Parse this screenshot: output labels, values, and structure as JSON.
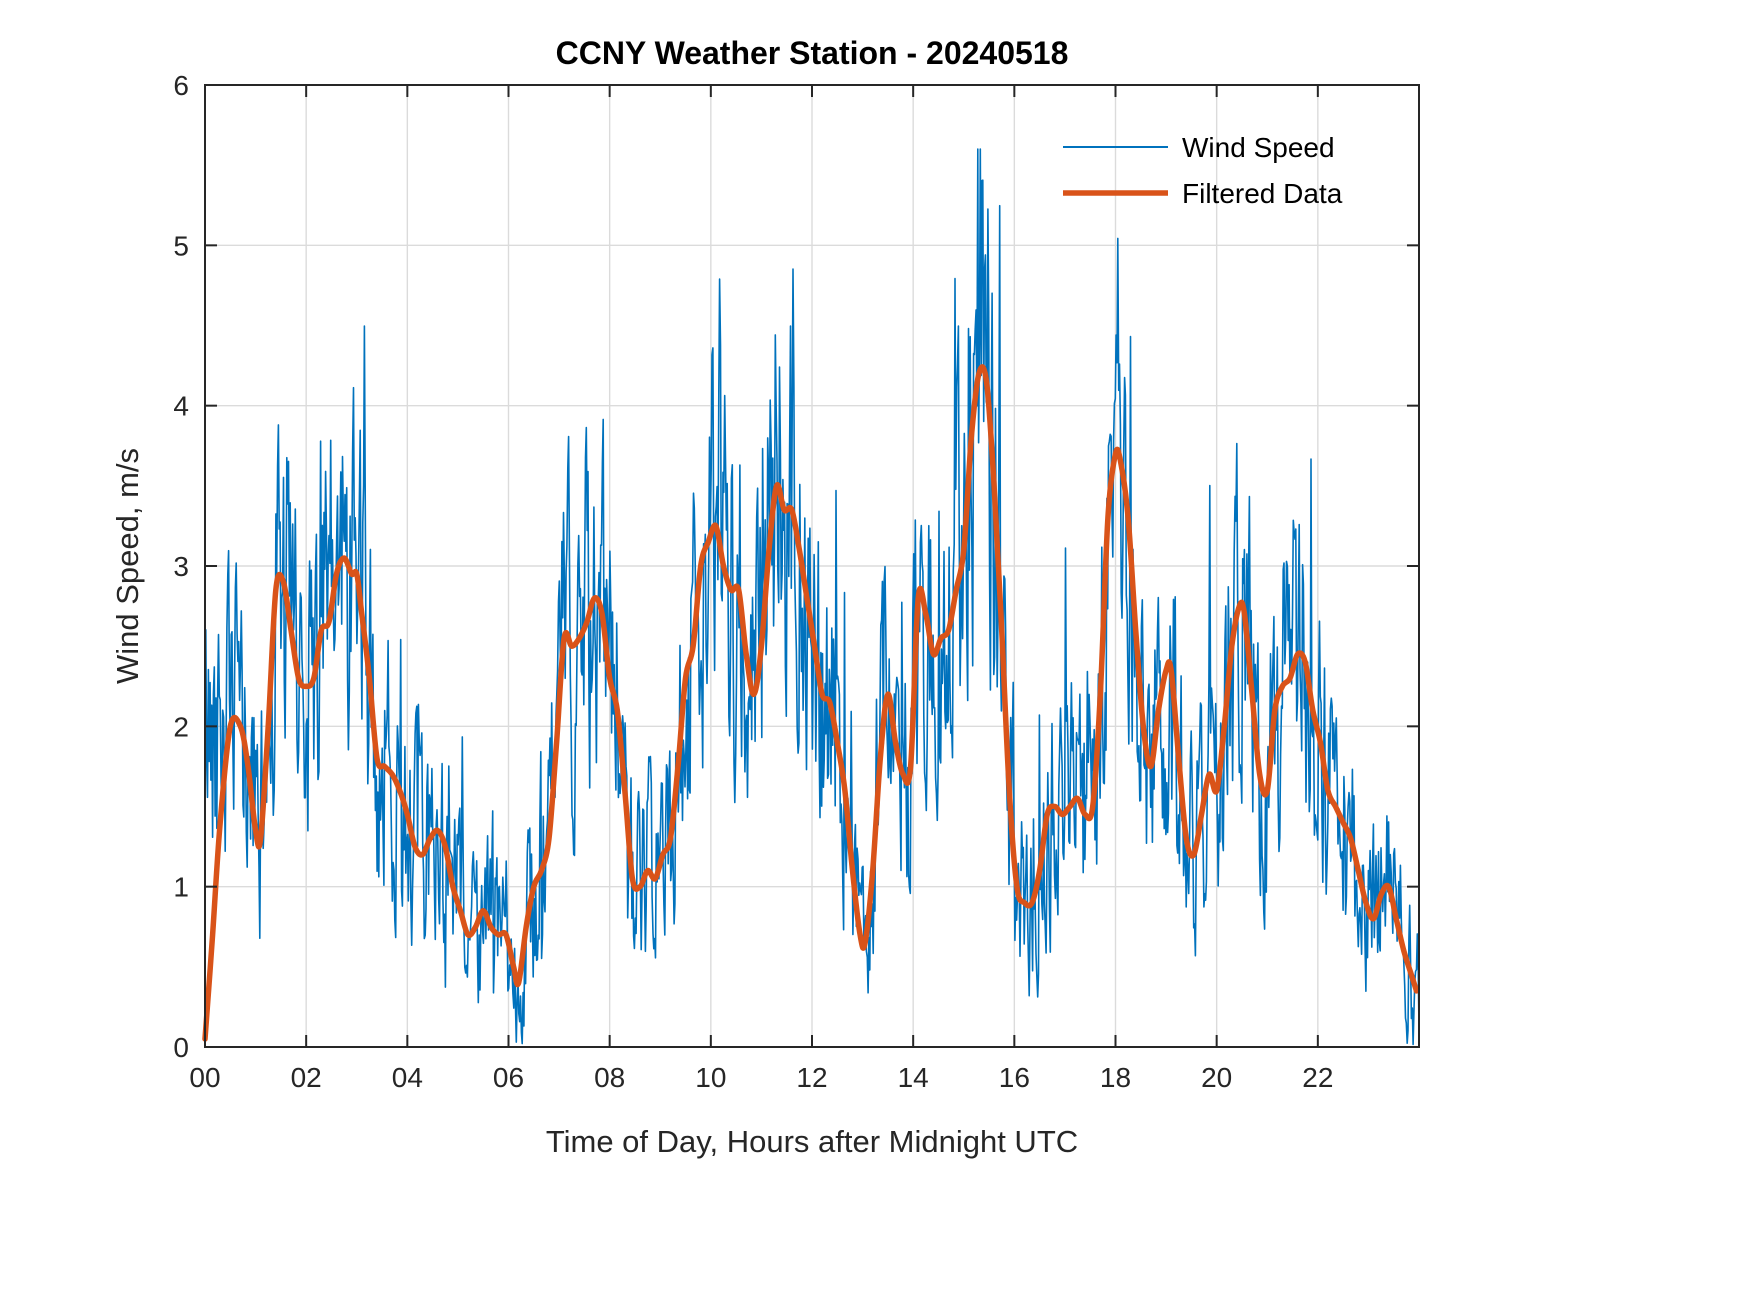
{
  "figure": {
    "title": "CCNY Weather Station - 20240518",
    "xlabel": "Time of Day, Hours after Midnight UTC",
    "ylabel": "Wind Speed, m/s"
  },
  "legend": {
    "position": "top-right",
    "entries": [
      {
        "label": "Wind Speed",
        "color": "#0072BD",
        "sample_width": 2
      },
      {
        "label": "Filtered Data",
        "color": "#D95319",
        "sample_width": 5.5
      }
    ]
  },
  "colors": {
    "axis_box": "#262626",
    "grid": "#DBDBDB",
    "background": "#FFFFFF",
    "wind_speed_line": "#0072BD",
    "filtered_line": "#D95319"
  },
  "chart_data": {
    "type": "line",
    "title": "CCNY Weather Station - 20240518",
    "xlabel": "Time of Day, Hours after Midnight UTC",
    "ylabel": "Wind Speed, m/s",
    "xlim": [
      0,
      24
    ],
    "ylim": [
      0,
      6
    ],
    "grid": true,
    "legend_position": "top-right",
    "x_ticks": {
      "values": [
        0,
        2,
        4,
        6,
        8,
        10,
        12,
        14,
        16,
        18,
        20,
        22
      ],
      "labels": [
        "00",
        "02",
        "04",
        "06",
        "08",
        "10",
        "12",
        "14",
        "16",
        "18",
        "20",
        "22"
      ]
    },
    "y_ticks": {
      "values": [
        0,
        1,
        2,
        3,
        4,
        5,
        6
      ],
      "labels": [
        "0",
        "1",
        "2",
        "3",
        "4",
        "5",
        "6"
      ]
    },
    "series": [
      {
        "name": "Wind Speed",
        "color": "#0072BD",
        "width": 1.6,
        "description": "1-minute noisy wind speed; fluctuates around the filtered curve",
        "noise": {
          "seed": 42,
          "points": 1440,
          "ar": 0.45,
          "step": 0.62,
          "base": 0.38,
          "fscale": 0.42,
          "spike_prob": 0.05,
          "spike_amp": 2.2,
          "spike_fbase": 0.3,
          "spike_fscale": 0.3,
          "start_hold_t": 0.5,
          "clip": [
            0,
            5.6
          ]
        }
      },
      {
        "name": "Filtered Data",
        "color": "#D95319",
        "width": 5.5,
        "t": [
          0,
          0.15,
          0.3,
          0.5,
          0.7,
          0.85,
          1.0,
          1.1,
          1.25,
          1.4,
          1.55,
          1.7,
          1.85,
          2.0,
          2.15,
          2.3,
          2.45,
          2.6,
          2.75,
          2.9,
          3.0,
          3.1,
          3.25,
          3.4,
          3.55,
          3.7,
          3.85,
          4.0,
          4.15,
          4.3,
          4.45,
          4.6,
          4.75,
          4.9,
          5.05,
          5.2,
          5.35,
          5.5,
          5.65,
          5.8,
          5.95,
          6.1,
          6.2,
          6.35,
          6.5,
          6.65,
          6.8,
          6.95,
          7.1,
          7.25,
          7.4,
          7.55,
          7.7,
          7.85,
          8.0,
          8.15,
          8.3,
          8.45,
          8.6,
          8.75,
          8.9,
          9.05,
          9.2,
          9.35,
          9.5,
          9.65,
          9.8,
          9.95,
          10.1,
          10.25,
          10.4,
          10.55,
          10.7,
          10.85,
          11.0,
          11.15,
          11.3,
          11.45,
          11.6,
          11.75,
          11.9,
          12.05,
          12.2,
          12.35,
          12.5,
          12.65,
          12.8,
          12.95,
          13.05,
          13.2,
          13.35,
          13.5,
          13.65,
          13.8,
          13.95,
          14.1,
          14.25,
          14.4,
          14.55,
          14.7,
          14.85,
          15.0,
          15.15,
          15.3,
          15.45,
          15.6,
          15.75,
          15.9,
          16.05,
          16.2,
          16.35,
          16.5,
          16.65,
          16.8,
          16.95,
          17.1,
          17.25,
          17.4,
          17.55,
          17.7,
          17.85,
          18.0,
          18.1,
          18.25,
          18.4,
          18.55,
          18.7,
          18.85,
          19.0,
          19.1,
          19.25,
          19.4,
          19.55,
          19.7,
          19.85,
          20.0,
          20.15,
          20.3,
          20.45,
          20.55,
          20.7,
          20.85,
          21.0,
          21.15,
          21.3,
          21.45,
          21.6,
          21.75,
          21.9,
          22.05,
          22.2,
          22.35,
          22.5,
          22.65,
          22.8,
          22.95,
          23.1,
          23.25,
          23.4,
          23.55,
          23.7,
          23.85,
          23.95
        ],
        "values": [
          0.05,
          0.7,
          1.4,
          2.0,
          2.0,
          1.75,
          1.35,
          1.3,
          2.0,
          2.85,
          2.9,
          2.6,
          2.3,
          2.25,
          2.3,
          2.6,
          2.65,
          2.95,
          3.05,
          2.95,
          2.95,
          2.7,
          2.3,
          1.8,
          1.75,
          1.7,
          1.6,
          1.45,
          1.25,
          1.2,
          1.3,
          1.35,
          1.25,
          1.0,
          0.85,
          0.7,
          0.75,
          0.85,
          0.75,
          0.7,
          0.7,
          0.5,
          0.4,
          0.75,
          1.0,
          1.1,
          1.3,
          1.9,
          2.55,
          2.5,
          2.55,
          2.65,
          2.8,
          2.7,
          2.3,
          2.1,
          1.6,
          1.05,
          1.0,
          1.1,
          1.05,
          1.2,
          1.3,
          1.75,
          2.3,
          2.5,
          3.0,
          3.15,
          3.25,
          3.0,
          2.85,
          2.85,
          2.45,
          2.2,
          2.5,
          3.1,
          3.5,
          3.35,
          3.35,
          3.1,
          2.8,
          2.5,
          2.2,
          2.15,
          1.9,
          1.6,
          1.1,
          0.7,
          0.65,
          1.1,
          1.8,
          2.2,
          1.9,
          1.7,
          1.75,
          2.8,
          2.7,
          2.45,
          2.55,
          2.6,
          2.85,
          3.1,
          3.8,
          4.2,
          4.15,
          3.5,
          2.6,
          1.6,
          1.0,
          0.9,
          0.9,
          1.1,
          1.45,
          1.5,
          1.45,
          1.5,
          1.55,
          1.45,
          1.5,
          2.2,
          3.3,
          3.7,
          3.65,
          3.3,
          2.6,
          2.0,
          1.75,
          2.1,
          2.35,
          2.35,
          1.8,
          1.3,
          1.2,
          1.45,
          1.7,
          1.6,
          2.0,
          2.5,
          2.75,
          2.7,
          2.2,
          1.7,
          1.6,
          2.1,
          2.25,
          2.3,
          2.45,
          2.4,
          2.1,
          1.9,
          1.6,
          1.5,
          1.4,
          1.3,
          1.1,
          0.9,
          0.8,
          0.95,
          1.0,
          0.8,
          0.6,
          0.45,
          0.35
        ]
      }
    ]
  }
}
